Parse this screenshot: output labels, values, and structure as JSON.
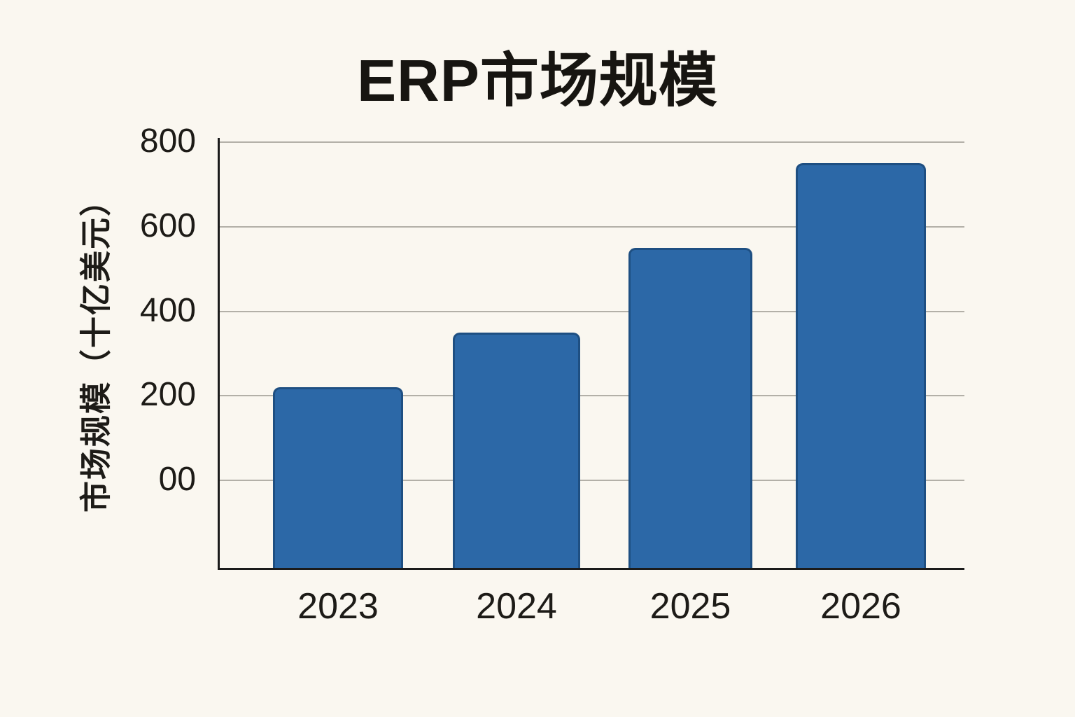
{
  "page": {
    "background_color": "#faf7f0",
    "text_color": "#1d1b17"
  },
  "chart_data": {
    "type": "bar",
    "title": "ERP市场规模",
    "ylabel": "市场规模（十亿美元）",
    "xlabel": "",
    "categories": [
      "2023",
      "2024",
      "2025",
      "2026"
    ],
    "values": [
      220,
      350,
      550,
      750
    ],
    "units": "十亿美元",
    "y_ticks": [
      {
        "value": 800,
        "label": "800"
      },
      {
        "value": 600,
        "label": "600"
      },
      {
        "value": 400,
        "label": "400"
      },
      {
        "value": 200,
        "label": "200"
      },
      {
        "value": 0,
        "label": "00"
      }
    ],
    "ylim": [
      -210,
      805
    ],
    "grid": "horizontal-only",
    "legend": "none",
    "colors": {
      "bar_fill": "#2c68a7",
      "bar_border": "#1e4f82",
      "gridline": "#b3b0a8",
      "axis_line": "#1b1b1b"
    }
  }
}
